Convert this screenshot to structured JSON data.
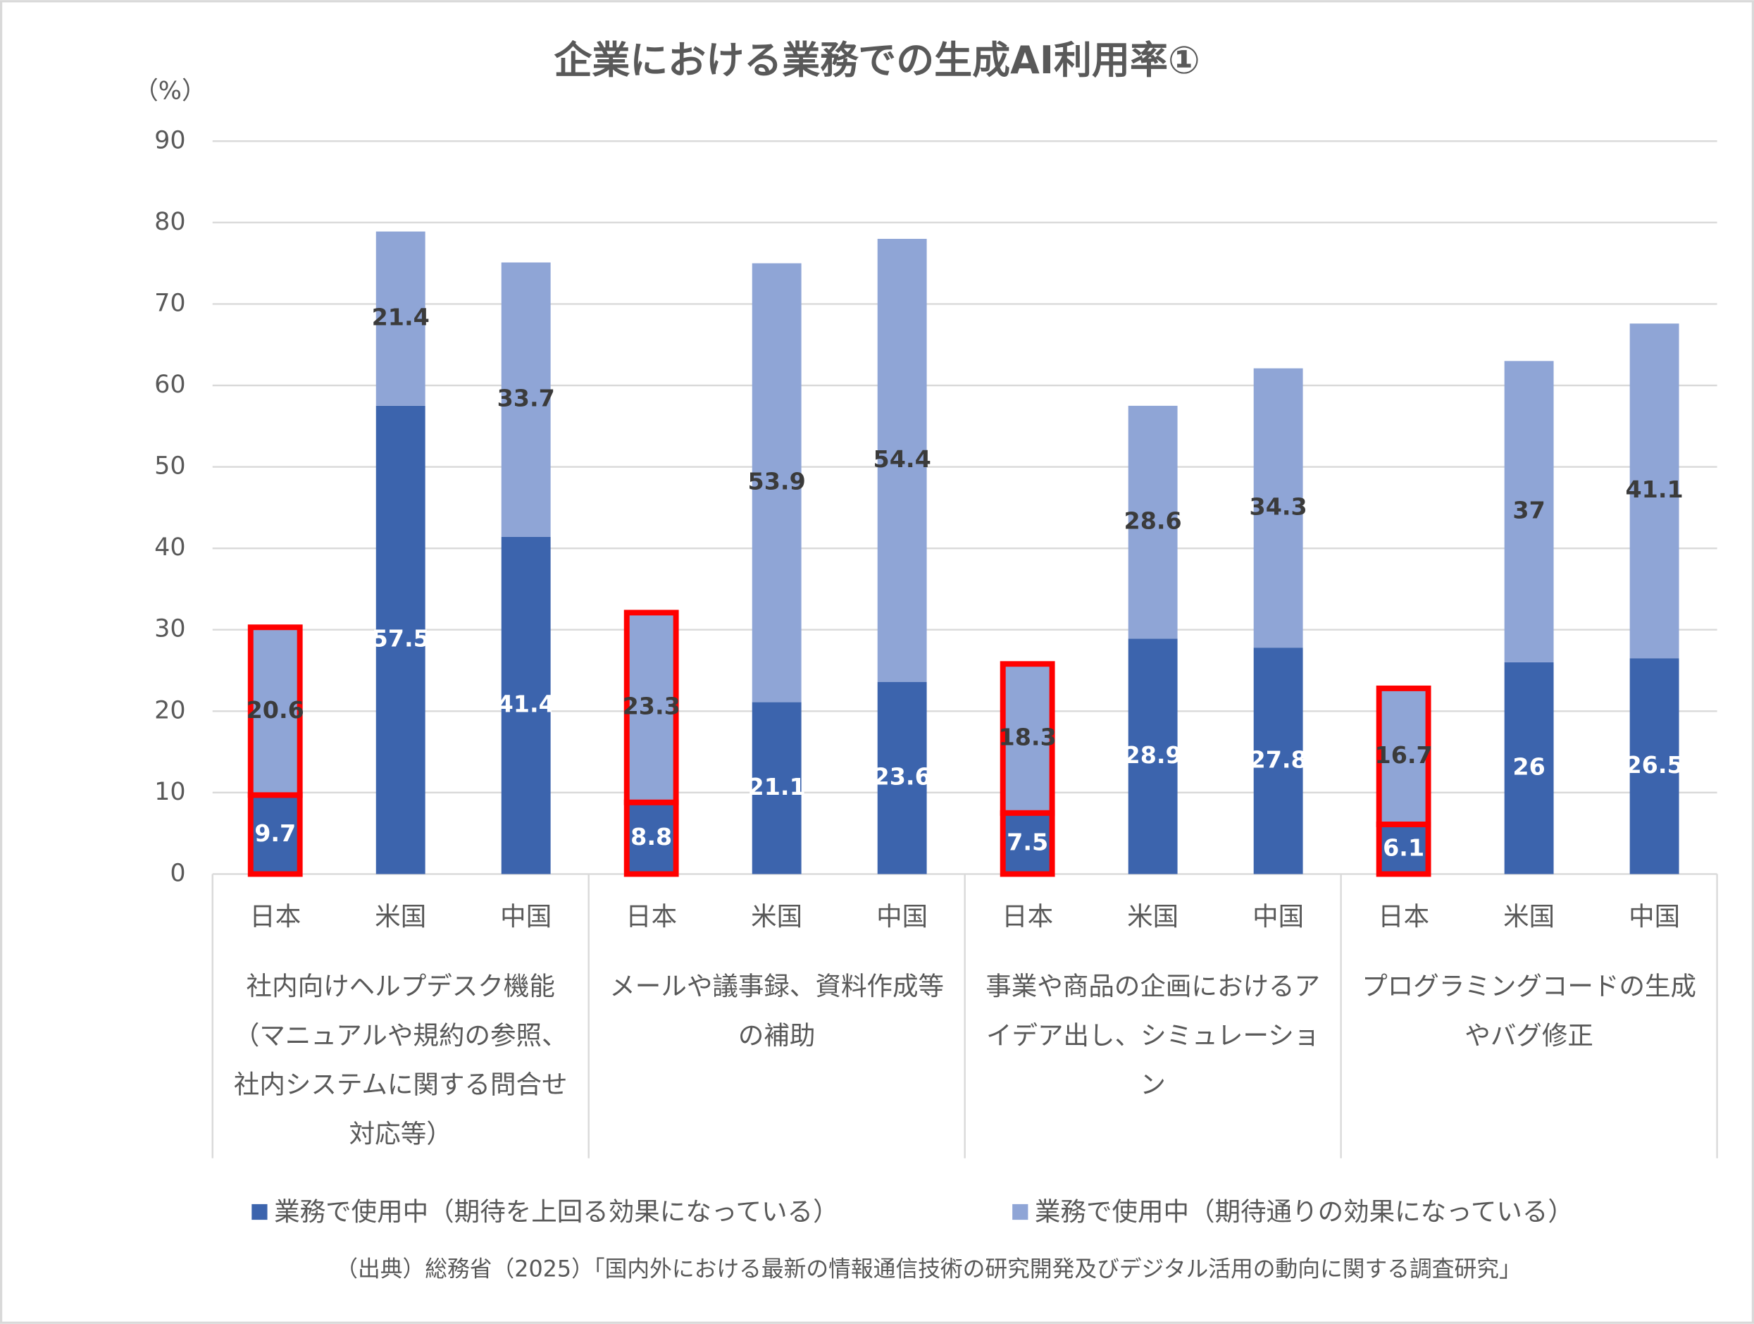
{
  "chart_data": {
    "type": "stacked_bar",
    "title": "企業における業務での生成AI利用率①",
    "y_unit_label": "（%）",
    "categories": [
      "日本",
      "米国",
      "中国",
      "日本",
      "米国",
      "中国",
      "日本",
      "米国",
      "中国",
      "日本",
      "米国",
      "中国"
    ],
    "groups": [
      {
        "label": "社内向けヘルプデスク機能（マニュアルや規約の参照、社内システムに関する問合せ対応等）",
        "size": 3
      },
      {
        "label": "メールや議事録、資料作成等の補助",
        "size": 3
      },
      {
        "label": "事業や商品の企画におけるアイデア出し、シミュレーション",
        "size": 3
      },
      {
        "label": "プログラミングコードの生成やバグ修正",
        "size": 3
      }
    ],
    "series": [
      {
        "name": "業務で使用中（期待を上回る効果になっている）",
        "color": "#3c64ad",
        "label_color": "#ffffff",
        "values": [
          9.7,
          57.5,
          41.4,
          8.8,
          21.1,
          23.6,
          7.5,
          28.9,
          27.8,
          6.1,
          26,
          26.5
        ]
      },
      {
        "name": "業務で使用中（期待通りの効果になっている）",
        "color": "#8fa5d6",
        "label_color": "#3b3b3b",
        "values": [
          20.6,
          21.4,
          33.7,
          23.3,
          53.9,
          54.4,
          18.3,
          28.6,
          34.3,
          16.7,
          37,
          41.1
        ]
      }
    ],
    "highlighted": [
      0,
      3,
      6,
      9
    ],
    "highlight_color": "#ff0000",
    "ylim": [
      0,
      90
    ],
    "yticks": [
      0,
      10,
      20,
      30,
      40,
      50,
      60,
      70,
      80,
      90
    ],
    "grid": true,
    "source": "（出典）総務省（2025）「国内外における最新の情報通信技術の研究開発及びデジタル活用の動向に関する調査研究」"
  }
}
